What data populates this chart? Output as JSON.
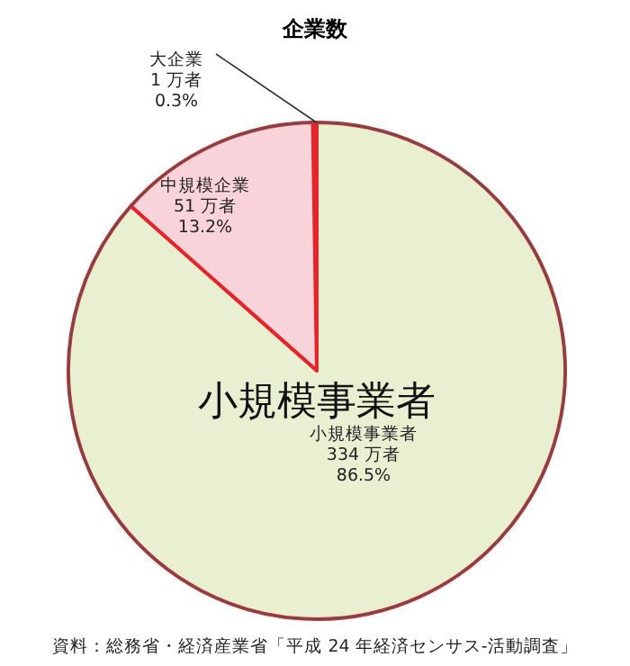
{
  "chart_data": {
    "type": "pie",
    "title": "企業数",
    "categories": [
      "大企業",
      "中規模企業",
      "小規模事業者"
    ],
    "values": [
      1,
      51,
      334
    ],
    "colors": [
      "#4a4a4a",
      "#f9d3da",
      "#e9f0d2"
    ],
    "value_labels": [
      "1 万者\n0.3%",
      "51 万者\n13.2%",
      "334 万者\n86.5%"
    ],
    "annotations": [
      "小規模事業者",
      "資料：総務省・経済産業省「平成 24 年経済センサス-活動調査」"
    ]
  }
}
